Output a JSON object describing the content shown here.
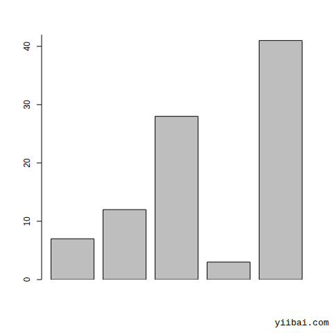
{
  "chart_data": {
    "type": "bar",
    "categories": [
      null,
      null,
      null,
      null,
      null
    ],
    "values": [
      7,
      12,
      28,
      3,
      41
    ],
    "color": "#bebebe",
    "ylim": [
      0,
      42
    ],
    "yticks": [
      0,
      10,
      20,
      30,
      40
    ],
    "grid": false,
    "tick_labels": "y",
    "annotations": [
      "yiibai.com"
    ]
  }
}
